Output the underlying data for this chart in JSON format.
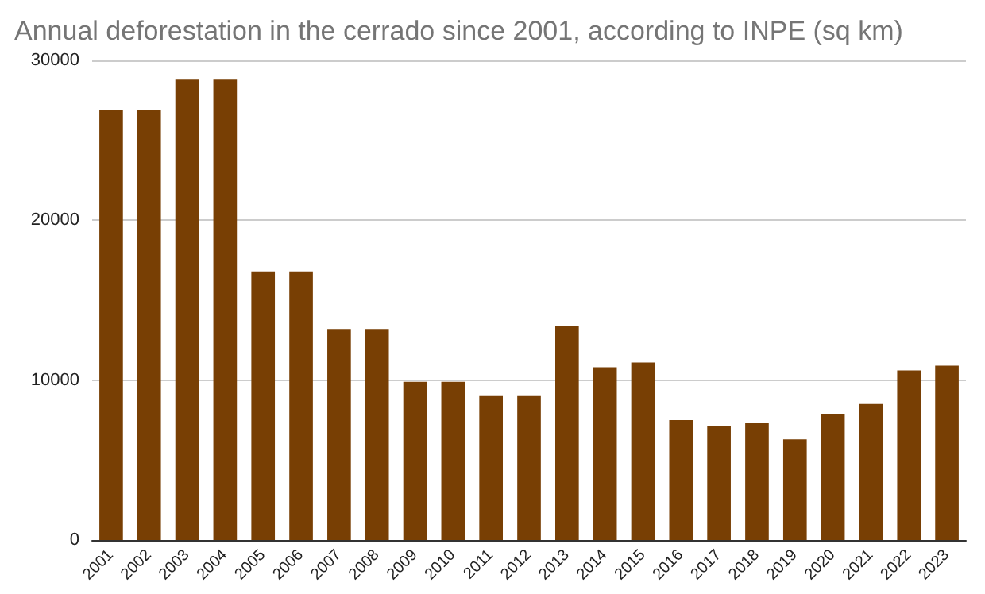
{
  "chart_data": {
    "type": "bar",
    "title": "Annual deforestation in the cerrado since 2001, according to INPE (sq km)",
    "categories": [
      "2001",
      "2002",
      "2003",
      "2004",
      "2005",
      "2006",
      "2007",
      "2008",
      "2009",
      "2010",
      "2011",
      "2012",
      "2013",
      "2014",
      "2015",
      "2016",
      "2017",
      "2018",
      "2019",
      "2020",
      "2021",
      "2022",
      "2023"
    ],
    "values": [
      26900,
      26900,
      28800,
      28800,
      16800,
      16800,
      13200,
      13200,
      9900,
      9900,
      9000,
      9000,
      13400,
      10800,
      11100,
      7500,
      7100,
      7300,
      6300,
      7900,
      8500,
      10600,
      10900
    ],
    "color": "#783f04",
    "ylim": [
      0,
      30000
    ],
    "yticks": [
      0,
      10000,
      20000,
      30000
    ],
    "grid": "y"
  }
}
